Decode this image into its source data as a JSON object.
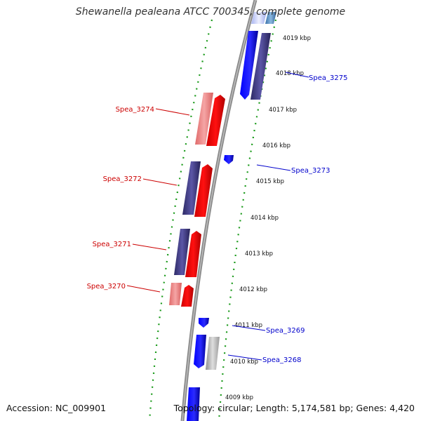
{
  "title": "Shewanella pealeana ATCC 700345, complete genome",
  "footer": {
    "accession": "Accession: NC_009901",
    "info": "Topology: circular; Length: 5,174,581 bp; Genes: 4,420"
  },
  "colors": {
    "backbone": "#8a8a8a",
    "ruler_dash": "#1a9a1a",
    "reverse_strand_label": "#cc0000",
    "forward_strand_label": "#0000cc"
  },
  "ruler_ticks": [
    "4019 kbp",
    "4018 kbp",
    "4017 kbp",
    "4016 kbp",
    "4015 kbp",
    "4014 kbp",
    "4013 kbp",
    "4012 kbp",
    "4011 kbp",
    "4010 kbp",
    "4009 kbp"
  ],
  "gene_labels": {
    "spea_3275": "Spea_3275",
    "spea_3274": "Spea_3274",
    "spea_3273": "Spea_3273",
    "spea_3272": "Spea_3272",
    "spea_3271": "Spea_3271",
    "spea_3270": "Spea_3270",
    "spea_3269": "Spea_3269",
    "spea_3268": "Spea_3268"
  }
}
